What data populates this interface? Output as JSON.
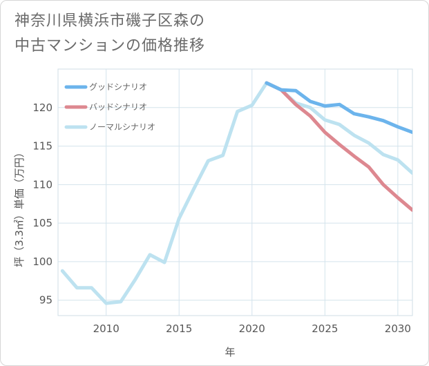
{
  "chart_data": {
    "type": "line",
    "title": "神奈川県横浜市磯子区森の\n中古マンションの価格推移",
    "xlabel": "年",
    "ylabel": "坪（3.3㎡）単価（万円）",
    "xlim": [
      2006.7,
      2031
    ],
    "ylim": [
      93,
      125
    ],
    "xticks": [
      2010,
      2015,
      2020,
      2025,
      2030
    ],
    "yticks": [
      95,
      100,
      105,
      110,
      115,
      120
    ],
    "grid": true,
    "legend_position": "top-left",
    "series": [
      {
        "name": "グッドシナリオ",
        "color": "#6cb4ec",
        "x": [
          2021,
          2022,
          2023,
          2024,
          2025,
          2026,
          2027,
          2028,
          2029,
          2030,
          2031
        ],
        "y": [
          123.2,
          122.3,
          122.2,
          120.8,
          120.2,
          120.4,
          119.2,
          118.8,
          118.3,
          117.5,
          116.8
        ]
      },
      {
        "name": "バッドシナリオ",
        "color": "#dd8890",
        "x": [
          2021,
          2022,
          2023,
          2024,
          2025,
          2026,
          2027,
          2028,
          2029,
          2030,
          2031
        ],
        "y": [
          123.2,
          122.3,
          120.4,
          118.9,
          116.8,
          115.2,
          113.7,
          112.3,
          110.0,
          108.3,
          106.7
        ]
      },
      {
        "name": "ノーマルシナリオ",
        "color": "#bde2f0",
        "x": [
          2007,
          2008,
          2009,
          2010,
          2011,
          2012,
          2013,
          2014,
          2015,
          2016,
          2017,
          2018,
          2019,
          2020,
          2021,
          2022,
          2023,
          2024,
          2025,
          2026,
          2027,
          2028,
          2029,
          2030,
          2031
        ],
        "y": [
          98.8,
          96.6,
          96.6,
          94.6,
          94.8,
          97.7,
          100.9,
          99.9,
          105.6,
          109.4,
          113.1,
          113.8,
          119.5,
          120.3,
          123.2,
          122.3,
          120.6,
          120.0,
          118.4,
          117.8,
          116.4,
          115.4,
          113.9,
          113.2,
          111.5
        ]
      }
    ]
  }
}
